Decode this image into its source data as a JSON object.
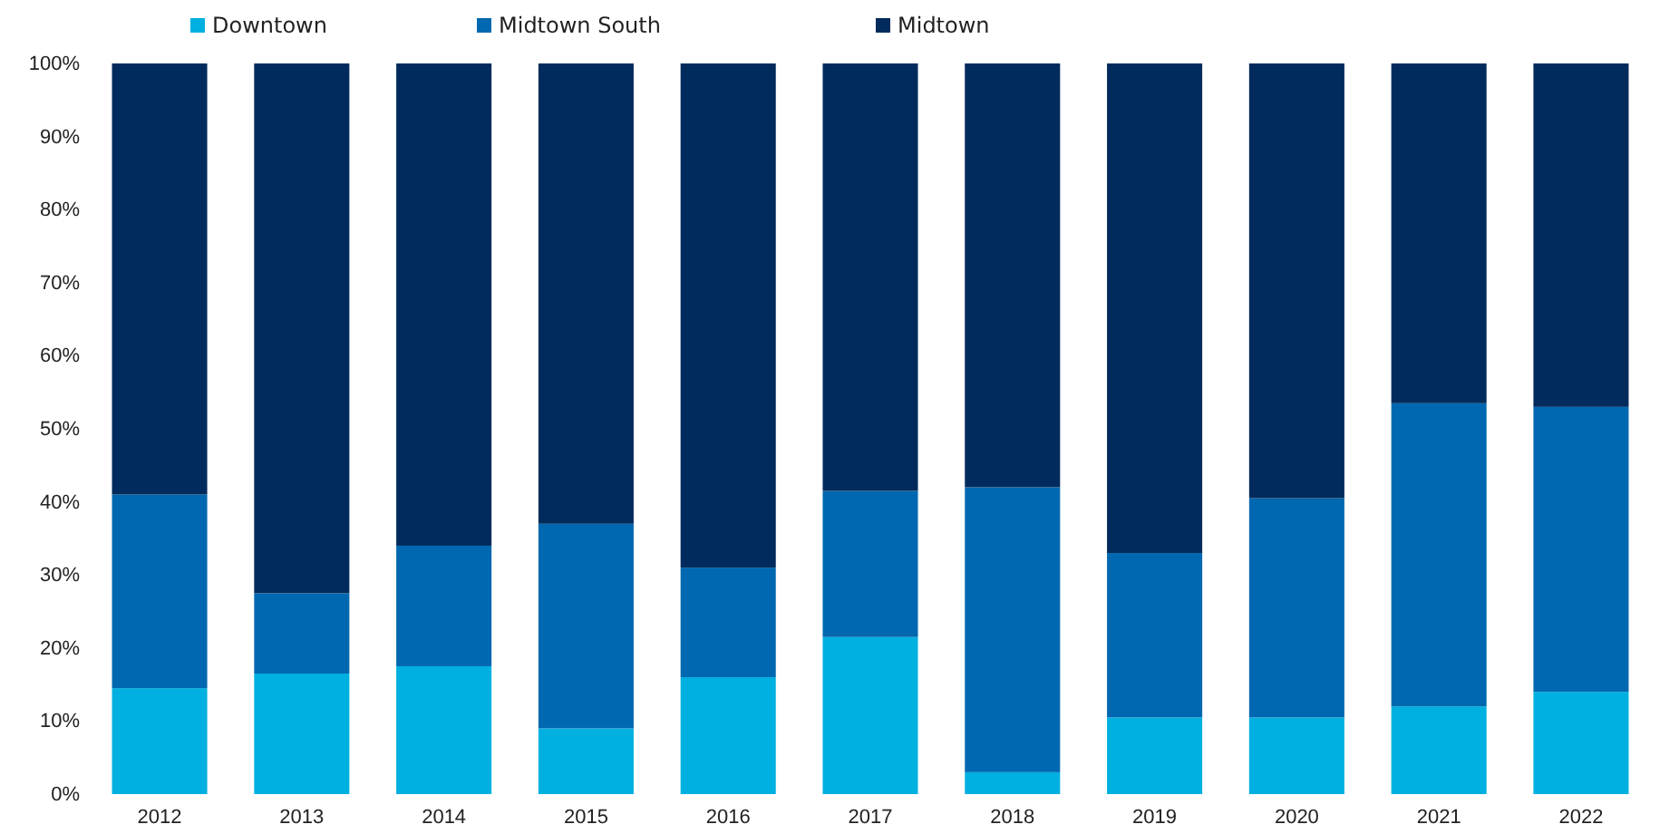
{
  "chart_data": {
    "type": "bar",
    "stacked": true,
    "categories": [
      "2012",
      "2013",
      "2014",
      "2015",
      "2016",
      "2017",
      "2018",
      "2019",
      "2020",
      "2021",
      "2022"
    ],
    "series": [
      {
        "name": "Downtown",
        "color": "#00b0e0",
        "values": [
          14.5,
          16.5,
          17.5,
          9,
          16,
          21.5,
          3,
          10.5,
          10.5,
          12,
          14
        ]
      },
      {
        "name": "Midtown South",
        "color": "#0068b0",
        "values": [
          26.5,
          11,
          16.5,
          28,
          15,
          20,
          39,
          22.5,
          30,
          41.5,
          39
        ]
      },
      {
        "name": "Midtown",
        "color": "#002b5c",
        "values": [
          59,
          72.5,
          66,
          63,
          69,
          58.5,
          58,
          67,
          59.5,
          46.5,
          47
        ]
      }
    ],
    "ylim": [
      0,
      100
    ],
    "yticks": [
      {
        "value": 0,
        "label": "0%"
      },
      {
        "value": 10,
        "label": "10%"
      },
      {
        "value": 20,
        "label": "20%"
      },
      {
        "value": 30,
        "label": "30%"
      },
      {
        "value": 40,
        "label": "40%"
      },
      {
        "value": 50,
        "label": "50%"
      },
      {
        "value": 60,
        "label": "60%"
      },
      {
        "value": 70,
        "label": "70%"
      },
      {
        "value": 80,
        "label": "80%"
      },
      {
        "value": 90,
        "label": "90%"
      },
      {
        "value": 100,
        "label": "100%"
      }
    ],
    "legend": "top left",
    "marker": "square"
  }
}
